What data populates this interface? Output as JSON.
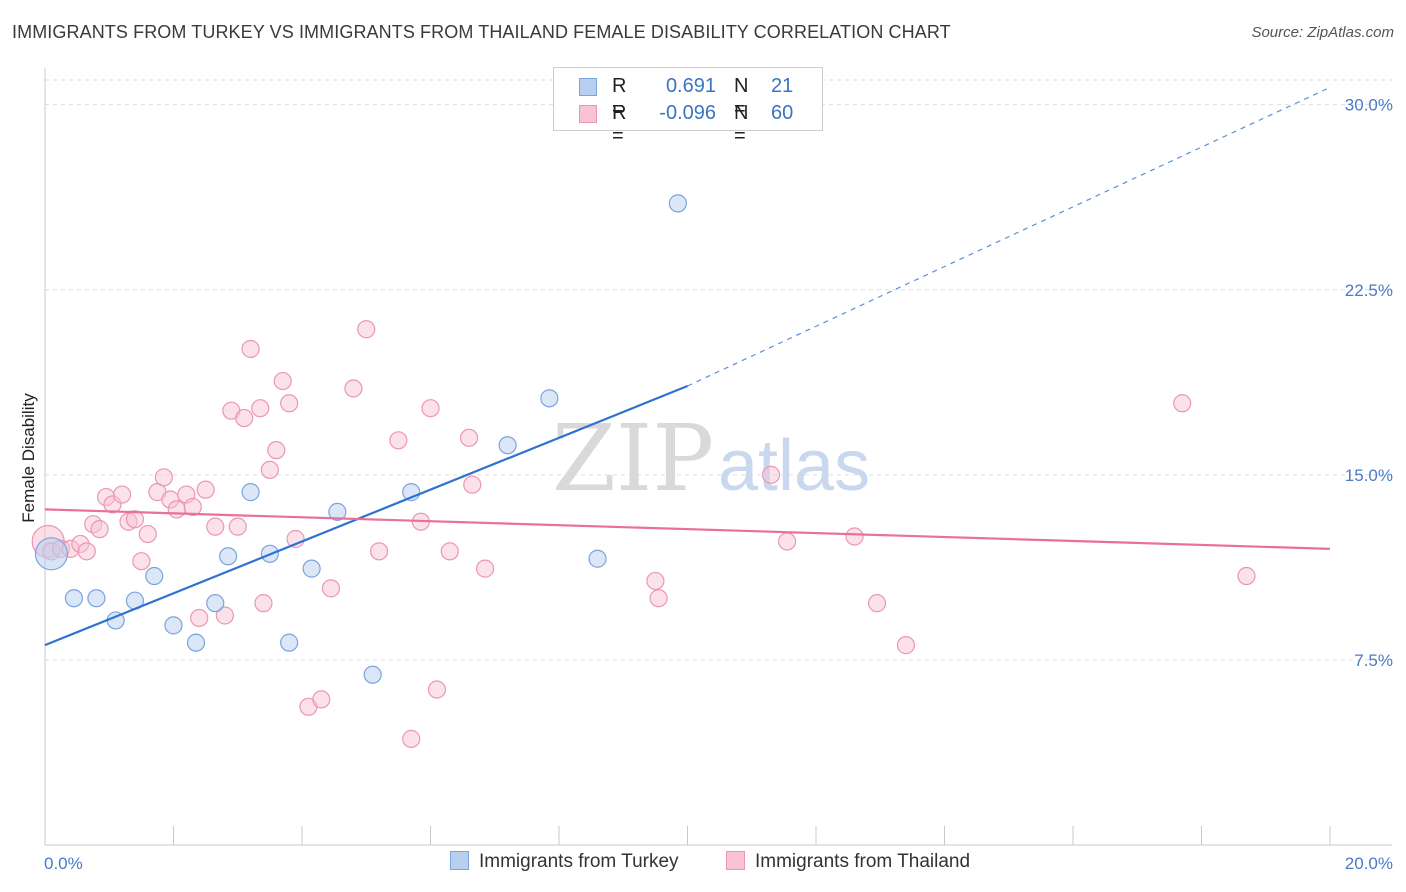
{
  "title": "IMMIGRANTS FROM TURKEY VS IMMIGRANTS FROM THAILAND FEMALE DISABILITY CORRELATION CHART",
  "source": "Source: ZipAtlas.com",
  "watermark": {
    "zip": "ZIP",
    "atlas": "atlas"
  },
  "legend": {
    "rows": [
      {
        "r_label": "R =",
        "r_value": "0.691",
        "n_label": "N =",
        "n_value": "21"
      },
      {
        "r_label": "R =",
        "r_value": "-0.096",
        "n_label": "N =",
        "n_value": "60"
      }
    ]
  },
  "colors": {
    "turkey_fill": "#b8d0f0",
    "turkey_stroke": "#7ba3dd",
    "turkey_line": "#2f73cf",
    "thailand_fill": "#f8c3d4",
    "thailand_stroke": "#eb97b3",
    "thailand_line": "#e8709a",
    "tick_text": "#4a7ac8",
    "grid": "#dedede"
  },
  "chart_data": {
    "type": "scatter",
    "title": "IMMIGRANTS FROM TURKEY VS IMMIGRANTS FROM THAILAND FEMALE DISABILITY CORRELATION CHART",
    "xlabel": "",
    "ylabel": "Female Disability",
    "xlim": [
      0,
      20
    ],
    "ylim": [
      0,
      31
    ],
    "x_tick_labels": [
      "0.0%",
      "20.0%"
    ],
    "y_ticks": [
      7.5,
      15.0,
      22.5,
      30.0
    ],
    "y_tick_labels": [
      "7.5%",
      "15.0%",
      "22.5%",
      "30.0%"
    ],
    "grid": "horizontal dashed",
    "legend_position": "top-center",
    "series": [
      {
        "name": "Immigrants from Turkey",
        "color": "#7ba3dd",
        "points": [
          [
            0.1,
            11.8
          ],
          [
            0.45,
            10.0
          ],
          [
            0.8,
            10.0
          ],
          [
            1.1,
            9.1
          ],
          [
            1.4,
            9.9
          ],
          [
            1.7,
            10.9
          ],
          [
            2.0,
            8.9
          ],
          [
            2.35,
            8.2
          ],
          [
            2.65,
            9.8
          ],
          [
            2.85,
            11.7
          ],
          [
            3.2,
            14.3
          ],
          [
            3.5,
            11.8
          ],
          [
            3.8,
            8.2
          ],
          [
            4.15,
            11.2
          ],
          [
            4.55,
            13.5
          ],
          [
            5.1,
            6.9
          ],
          [
            5.7,
            14.3
          ],
          [
            7.2,
            16.2
          ],
          [
            7.85,
            18.1
          ],
          [
            8.6,
            11.6
          ],
          [
            9.85,
            26.0
          ]
        ],
        "trend": {
          "x0": 0,
          "y0": 8.1,
          "x1": 10.0,
          "y1": 18.6,
          "x_ext": 20,
          "y_ext": 30.7
        }
      },
      {
        "name": "Immigrants from Thailand",
        "color": "#eb97b3",
        "points": [
          [
            0.05,
            12.3
          ],
          [
            0.1,
            11.9
          ],
          [
            0.25,
            12.0
          ],
          [
            0.4,
            12.0
          ],
          [
            0.55,
            12.2
          ],
          [
            0.65,
            11.9
          ],
          [
            0.75,
            13.0
          ],
          [
            0.85,
            12.8
          ],
          [
            0.95,
            14.1
          ],
          [
            1.05,
            13.8
          ],
          [
            1.2,
            14.2
          ],
          [
            1.3,
            13.1
          ],
          [
            1.4,
            13.2
          ],
          [
            1.5,
            11.5
          ],
          [
            1.6,
            12.6
          ],
          [
            1.75,
            14.3
          ],
          [
            1.85,
            14.9
          ],
          [
            1.95,
            14.0
          ],
          [
            2.05,
            13.6
          ],
          [
            2.2,
            14.2
          ],
          [
            2.3,
            13.7
          ],
          [
            2.4,
            9.2
          ],
          [
            2.5,
            14.4
          ],
          [
            2.65,
            12.9
          ],
          [
            2.8,
            9.3
          ],
          [
            2.9,
            17.6
          ],
          [
            3.0,
            12.9
          ],
          [
            3.1,
            17.3
          ],
          [
            3.2,
            20.1
          ],
          [
            3.35,
            17.7
          ],
          [
            3.4,
            9.8
          ],
          [
            3.5,
            15.2
          ],
          [
            3.6,
            16.0
          ],
          [
            3.7,
            18.8
          ],
          [
            3.8,
            17.9
          ],
          [
            3.9,
            12.4
          ],
          [
            4.1,
            5.6
          ],
          [
            4.3,
            5.9
          ],
          [
            4.45,
            10.4
          ],
          [
            4.8,
            18.5
          ],
          [
            5.0,
            20.9
          ],
          [
            5.2,
            11.9
          ],
          [
            5.5,
            16.4
          ],
          [
            5.7,
            4.3
          ],
          [
            5.85,
            13.1
          ],
          [
            6.0,
            17.7
          ],
          [
            6.1,
            6.3
          ],
          [
            6.3,
            11.9
          ],
          [
            6.6,
            16.5
          ],
          [
            6.65,
            14.6
          ],
          [
            6.85,
            11.2
          ],
          [
            9.5,
            10.7
          ],
          [
            9.55,
            10.0
          ],
          [
            11.3,
            15.0
          ],
          [
            11.55,
            12.3
          ],
          [
            12.6,
            12.5
          ],
          [
            12.95,
            9.8
          ],
          [
            13.4,
            8.1
          ],
          [
            17.7,
            17.9
          ],
          [
            18.7,
            10.9
          ]
        ],
        "trend": {
          "x0": 0,
          "y0": 13.6,
          "x1": 20,
          "y1": 12.0
        }
      }
    ]
  }
}
